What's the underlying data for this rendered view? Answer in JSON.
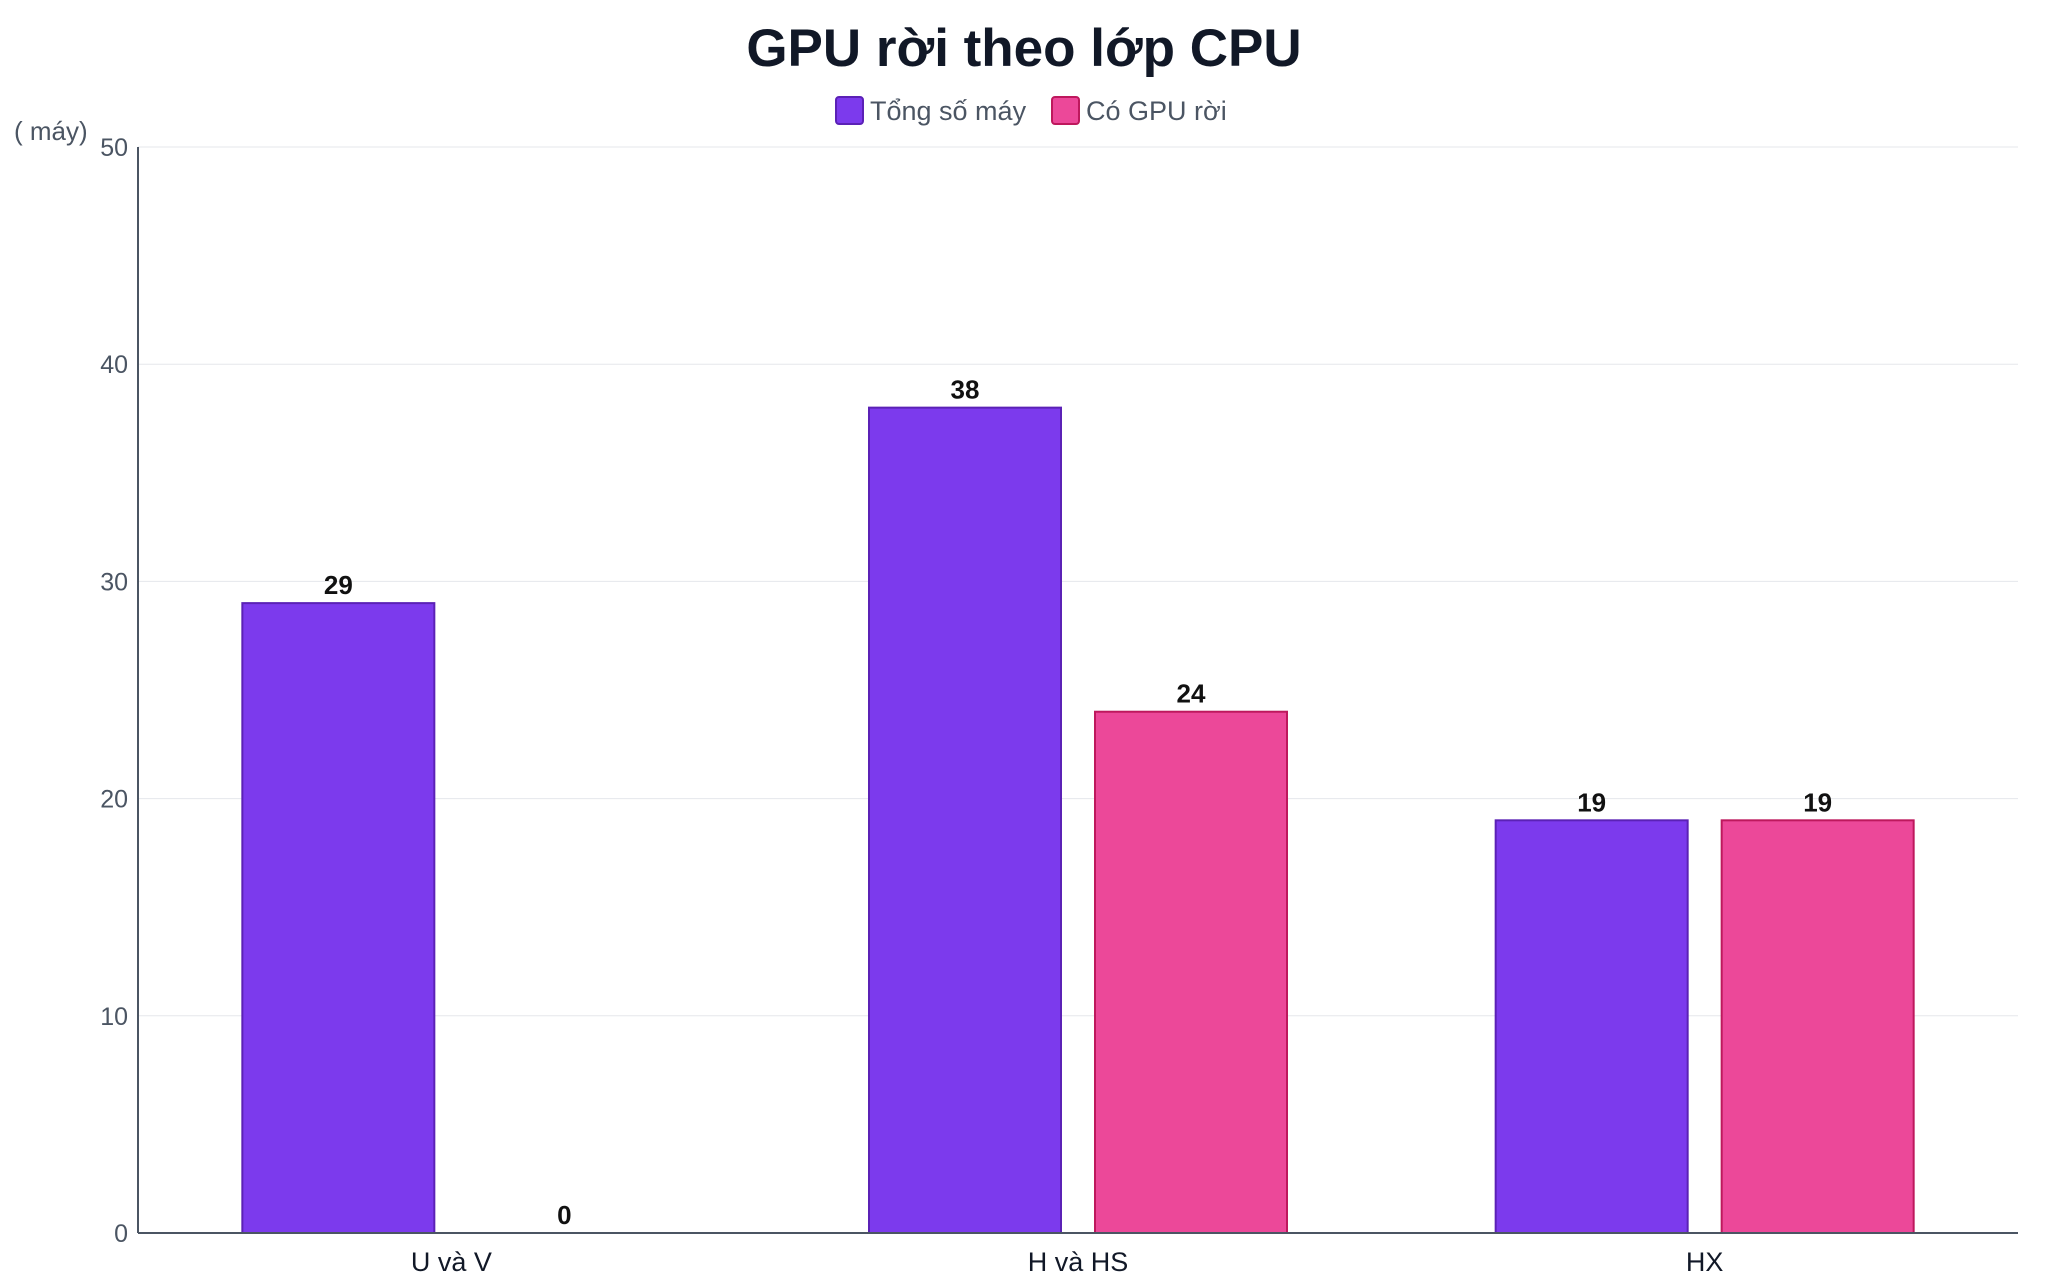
{
  "chart_data": {
    "type": "bar",
    "title": "GPU rời theo lớp CPU",
    "ylabel": "( máy)",
    "xlabel": "",
    "categories": [
      "U và V",
      "H và HS",
      "HX"
    ],
    "series": [
      {
        "name": "Tổng số máy",
        "values": [
          29,
          38,
          19
        ],
        "color": "#7c3aed",
        "border_color": "#5b21b6"
      },
      {
        "name": "Có GPU rời",
        "values": [
          0,
          24,
          19
        ],
        "color": "#ec4899",
        "border_color": "#be185d"
      }
    ],
    "ylim": [
      0,
      50
    ],
    "yticks": [
      0,
      10,
      20,
      30,
      40,
      50
    ],
    "grid": true,
    "legend_position": "top-center",
    "data_labels": true
  }
}
